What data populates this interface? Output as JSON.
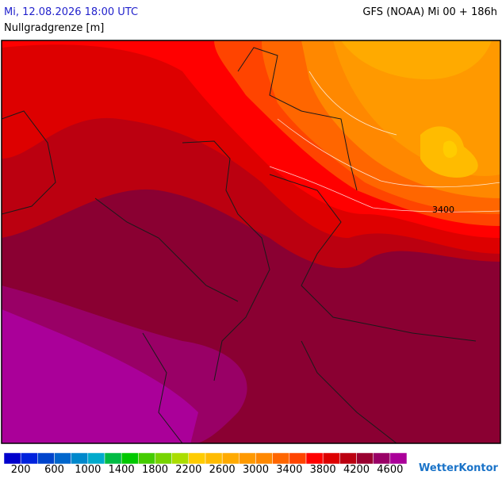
{
  "header": {
    "left": "Mi, 12.08.2026 18:00 UTC",
    "right": "GFS (NOAA) Mi 00 + 186h",
    "subtitle": "Nullgradgrenze [m]"
  },
  "map": {
    "contour_label": "3400"
  },
  "legend": {
    "colors": [
      "#0000cc",
      "#0022dd",
      "#0044cc",
      "#0066cc",
      "#0088cc",
      "#00aacc",
      "#00bb44",
      "#00c800",
      "#44cc00",
      "#77d400",
      "#aadd00",
      "#ffcc00",
      "#ffbb00",
      "#ffaa00",
      "#ff9900",
      "#ff8800",
      "#ff6600",
      "#ff4400",
      "#ff0000",
      "#dd0000",
      "#bb0010",
      "#990030",
      "#990066",
      "#aa0099"
    ],
    "labels": [
      200,
      600,
      1000,
      1400,
      1800,
      2200,
      2600,
      3000,
      3400,
      3800,
      4200,
      4600
    ]
  },
  "logo": "WetterKontor"
}
